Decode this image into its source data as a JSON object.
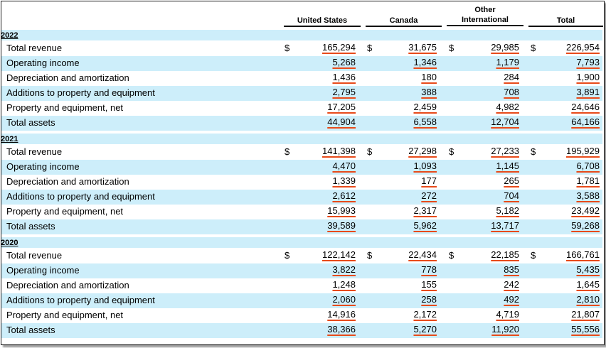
{
  "headers": {
    "us": "United States",
    "canada": "Canada",
    "other_line1": "Other",
    "other_line2": "International",
    "total": "Total"
  },
  "currency_symbol": "$",
  "row_labels": [
    "Total revenue",
    "Operating income",
    "Depreciation and amortization",
    "Additions to property and equipment",
    "Property and equipment, net",
    "Total assets"
  ],
  "years": [
    {
      "year": "2022",
      "rows": [
        [
          "165,294",
          "31,675",
          "29,985",
          "226,954"
        ],
        [
          "5,268",
          "1,346",
          "1,179",
          "7,793"
        ],
        [
          "1,436",
          "180",
          "284",
          "1,900"
        ],
        [
          "2,795",
          "388",
          "708",
          "3,891"
        ],
        [
          "17,205",
          "2,459",
          "4,982",
          "24,646"
        ],
        [
          "44,904",
          "6,558",
          "12,704",
          "64,166"
        ]
      ]
    },
    {
      "year": "2021",
      "rows": [
        [
          "141,398",
          "27,298",
          "27,233",
          "195,929"
        ],
        [
          "4,470",
          "1,093",
          "1,145",
          "6,708"
        ],
        [
          "1,339",
          "177",
          "265",
          "1,781"
        ],
        [
          "2,612",
          "272",
          "704",
          "3,588"
        ],
        [
          "15,993",
          "2,317",
          "5,182",
          "23,492"
        ],
        [
          "39,589",
          "5,962",
          "13,717",
          "59,268"
        ]
      ]
    },
    {
      "year": "2020",
      "rows": [
        [
          "122,142",
          "22,434",
          "22,185",
          "166,761"
        ],
        [
          "3,822",
          "778",
          "835",
          "5,435"
        ],
        [
          "1,248",
          "155",
          "242",
          "1,645"
        ],
        [
          "2,060",
          "258",
          "492",
          "2,810"
        ],
        [
          "14,916",
          "2,172",
          "4,719",
          "21,807"
        ],
        [
          "38,366",
          "5,270",
          "11,920",
          "55,556"
        ]
      ]
    }
  ],
  "colors": {
    "band_light_blue": "#cdeefa",
    "underline_orange": "#e84a1a"
  }
}
